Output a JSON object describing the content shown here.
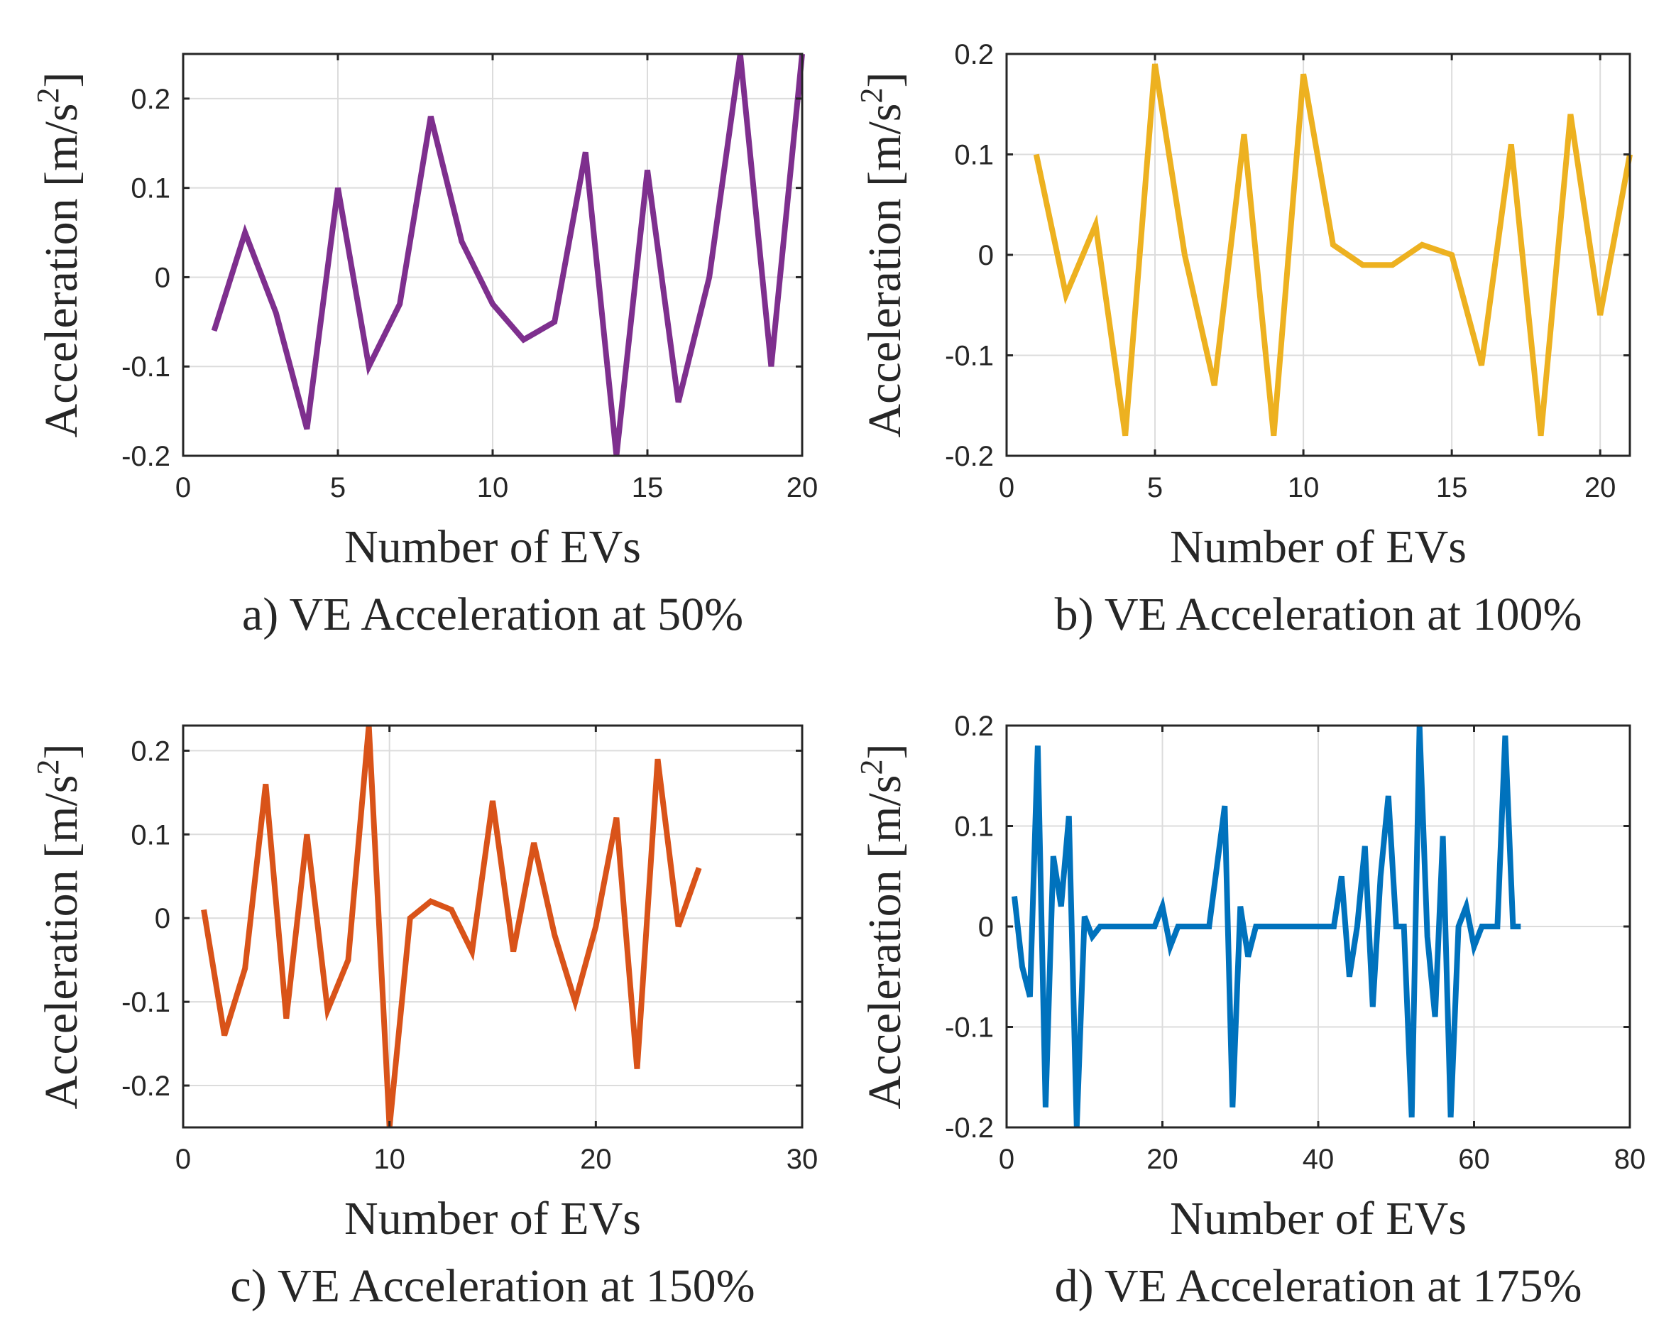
{
  "chart_data": [
    {
      "type": "line",
      "title": "",
      "caption": "a) VE Acceleration  at 50%",
      "xlabel": "Number of EVs",
      "ylabel": "Acceleration [m/s",
      "ylabel_superscript": "2",
      "ylabel_suffix": "]",
      "xlim": [
        0,
        20
      ],
      "ylim": [
        -0.2,
        0.25
      ],
      "xticks": [
        "0",
        "5",
        "10",
        "15",
        "20"
      ],
      "xtick_values": [
        0,
        5,
        10,
        15,
        20
      ],
      "yticks": [
        "-0.2",
        "-0.1",
        "0",
        "0.1",
        "0.2"
      ],
      "ytick_values": [
        -0.2,
        -0.1,
        0,
        0.1,
        0.2
      ],
      "grid": true,
      "color": "#7E2F8E",
      "series": [
        {
          "name": "VE acceleration",
          "x": [
            1,
            2,
            3,
            4,
            5,
            6,
            7,
            8,
            9,
            10,
            11,
            12,
            13,
            14,
            15,
            16,
            17,
            18,
            19,
            20
          ],
          "values": [
            -0.06,
            0.05,
            -0.04,
            -0.17,
            0.1,
            -0.1,
            -0.03,
            0.18,
            0.04,
            -0.03,
            -0.07,
            -0.05,
            0.14,
            -0.2,
            0.12,
            -0.14,
            0.0,
            0.25,
            -0.1,
            0.25
          ]
        }
      ]
    },
    {
      "type": "line",
      "title": "",
      "caption": "b) VE Acceleration  at 100%",
      "xlabel": "Number of EVs",
      "ylabel": "Acceleration [m/s",
      "ylabel_superscript": "2",
      "ylabel_suffix": "]",
      "xlim": [
        0,
        21
      ],
      "ylim": [
        -0.2,
        0.2
      ],
      "xticks": [
        "0",
        "5",
        "10",
        "15",
        "20"
      ],
      "xtick_values": [
        0,
        5,
        10,
        15,
        20
      ],
      "yticks": [
        "-0.2",
        "-0.1",
        "0",
        "0.1",
        "0.2"
      ],
      "ytick_values": [
        -0.2,
        -0.1,
        0,
        0.1,
        0.2
      ],
      "grid": true,
      "color": "#EDB120",
      "series": [
        {
          "name": "VE acceleration",
          "x": [
            1,
            2,
            3,
            4,
            5,
            6,
            7,
            8,
            9,
            10,
            11,
            12,
            13,
            14,
            15,
            16,
            17,
            18,
            19,
            20,
            21
          ],
          "values": [
            0.1,
            -0.04,
            0.03,
            -0.18,
            0.19,
            0.0,
            -0.13,
            0.12,
            -0.18,
            0.18,
            0.01,
            -0.01,
            -0.01,
            0.01,
            0.0,
            -0.11,
            0.11,
            -0.18,
            0.14,
            -0.06,
            0.1
          ]
        }
      ]
    },
    {
      "type": "line",
      "title": "",
      "caption": "c) VE Acceleration  at 150%",
      "xlabel": "Number of EVs",
      "ylabel": "Acceleration [m/s",
      "ylabel_superscript": "2",
      "ylabel_suffix": "]",
      "xlim": [
        0,
        30
      ],
      "ylim": [
        -0.25,
        0.23
      ],
      "xticks": [
        "0",
        "10",
        "20",
        "30"
      ],
      "xtick_values": [
        0,
        10,
        20,
        30
      ],
      "yticks": [
        "-0.2",
        "-0.1",
        "0",
        "0.1",
        "0.2"
      ],
      "ytick_values": [
        -0.2,
        -0.1,
        0,
        0.1,
        0.2
      ],
      "grid": true,
      "color": "#D95319",
      "series": [
        {
          "name": "VE acceleration",
          "x": [
            1,
            2,
            3,
            4,
            5,
            6,
            7,
            8,
            9,
            10,
            11,
            12,
            13,
            14,
            15,
            16,
            17,
            18,
            19,
            20,
            21,
            22,
            23,
            24,
            25
          ],
          "values": [
            0.01,
            -0.14,
            -0.06,
            0.16,
            -0.12,
            0.1,
            -0.11,
            -0.05,
            0.23,
            -0.25,
            0.0,
            0.02,
            0.01,
            -0.04,
            0.14,
            -0.04,
            0.09,
            -0.02,
            -0.1,
            -0.01,
            0.12,
            -0.18,
            0.19,
            -0.01,
            0.06
          ]
        }
      ]
    },
    {
      "type": "line",
      "title": "",
      "caption": "d) VE Acceleration  at 175%",
      "xlabel": "Number of EVs",
      "ylabel": "Acceleration [m/s",
      "ylabel_superscript": "2",
      "ylabel_suffix": "]",
      "xlim": [
        0,
        80
      ],
      "ylim": [
        -0.2,
        0.2
      ],
      "xticks": [
        "0",
        "20",
        "40",
        "60",
        "80"
      ],
      "xtick_values": [
        0,
        20,
        40,
        60,
        80
      ],
      "yticks": [
        "-0.2",
        "-0.1",
        "0",
        "0.1",
        "0.2"
      ],
      "ytick_values": [
        -0.2,
        -0.1,
        0,
        0.1,
        0.2
      ],
      "grid": true,
      "color": "#0072BD",
      "series": [
        {
          "name": "VE acceleration",
          "x": [
            1,
            2,
            3,
            4,
            5,
            6,
            7,
            8,
            9,
            10,
            11,
            12,
            13,
            14,
            15,
            16,
            17,
            18,
            19,
            20,
            21,
            22,
            23,
            24,
            25,
            26,
            27,
            28,
            29,
            30,
            31,
            32,
            33,
            34,
            35,
            36,
            37,
            38,
            39,
            40,
            41,
            42,
            43,
            44,
            45,
            46,
            47,
            48,
            49,
            50,
            51,
            52,
            53,
            54,
            55,
            56,
            57,
            58,
            59,
            60,
            61,
            62,
            63,
            64,
            65,
            66
          ],
          "values": [
            0.03,
            -0.04,
            -0.07,
            0.18,
            -0.18,
            0.07,
            0.02,
            0.11,
            -0.2,
            0.01,
            -0.01,
            0,
            0,
            0,
            0,
            0,
            0,
            0,
            0,
            0.02,
            -0.02,
            0,
            0,
            0,
            0,
            0,
            0.06,
            0.12,
            -0.18,
            0.02,
            -0.03,
            0,
            0,
            0,
            0,
            0,
            0,
            0,
            0,
            0,
            0,
            0,
            0.05,
            -0.05,
            0,
            0.08,
            -0.08,
            0.05,
            0.13,
            0,
            0,
            -0.19,
            0.2,
            -0.01,
            -0.09,
            0.09,
            -0.19,
            0,
            0.02,
            -0.02,
            0,
            0,
            0,
            0.19,
            0,
            0
          ]
        }
      ]
    }
  ]
}
